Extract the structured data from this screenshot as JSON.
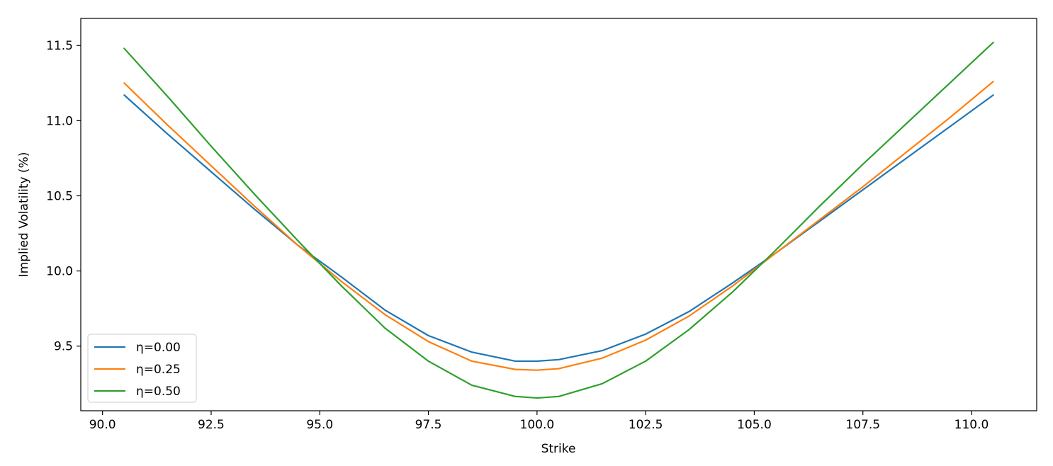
{
  "chart_data": {
    "type": "line",
    "title": "",
    "xlabel": "Strike",
    "ylabel": "Implied Volatility (%)",
    "xlim": [
      89.5,
      111.5
    ],
    "ylim": [
      9.07,
      11.68
    ],
    "xticks": [
      90.0,
      92.5,
      95.0,
      97.5,
      100.0,
      102.5,
      105.0,
      107.5,
      110.0
    ],
    "xtick_labels": [
      "90.0",
      "92.5",
      "95.0",
      "97.5",
      "100.0",
      "102.5",
      "105.0",
      "107.5",
      "110.0"
    ],
    "yticks": [
      9.5,
      10.0,
      10.5,
      11.0,
      11.5
    ],
    "ytick_labels": [
      "9.5",
      "10.0",
      "10.5",
      "11.0",
      "11.5"
    ],
    "grid": false,
    "legend_position": "lower-left",
    "series": [
      {
        "name": "η=0.00",
        "color": "#1f77b4",
        "x": [
          90.5,
          91.5,
          92.5,
          93.5,
          94.5,
          95.5,
          96.5,
          97.5,
          98.5,
          99.5,
          100.0,
          100.5,
          101.5,
          102.5,
          103.5,
          104.5,
          105.5,
          106.5,
          107.5,
          108.5,
          109.5,
          110.5
        ],
        "y": [
          11.17,
          10.91,
          10.66,
          10.41,
          10.17,
          9.96,
          9.74,
          9.57,
          9.46,
          9.4,
          9.4,
          9.41,
          9.47,
          9.58,
          9.73,
          9.92,
          10.12,
          10.33,
          10.54,
          10.75,
          10.96,
          11.17
        ]
      },
      {
        "name": "η=0.25",
        "color": "#ff7f0e",
        "x": [
          90.5,
          91.5,
          92.5,
          93.5,
          94.5,
          95.5,
          96.5,
          97.5,
          98.5,
          99.5,
          100.0,
          100.5,
          101.5,
          102.5,
          103.5,
          104.5,
          105.5,
          106.5,
          107.5,
          108.5,
          109.5,
          110.5
        ],
        "y": [
          11.25,
          10.97,
          10.7,
          10.43,
          10.17,
          9.93,
          9.71,
          9.53,
          9.4,
          9.345,
          9.34,
          9.35,
          9.42,
          9.54,
          9.7,
          9.9,
          10.12,
          10.34,
          10.56,
          10.79,
          11.02,
          11.26
        ]
      },
      {
        "name": "η=0.50",
        "color": "#2ca02c",
        "x": [
          90.5,
          91.5,
          92.5,
          93.5,
          94.5,
          95.5,
          96.5,
          97.5,
          98.5,
          99.5,
          100.0,
          100.5,
          101.5,
          102.5,
          103.5,
          104.5,
          105.5,
          106.5,
          107.5,
          108.5,
          109.5,
          110.5
        ],
        "y": [
          11.48,
          11.16,
          10.83,
          10.51,
          10.2,
          9.9,
          9.62,
          9.4,
          9.24,
          9.165,
          9.155,
          9.165,
          9.25,
          9.4,
          9.61,
          9.86,
          10.14,
          10.43,
          10.71,
          10.98,
          11.25,
          11.52
        ]
      }
    ]
  }
}
